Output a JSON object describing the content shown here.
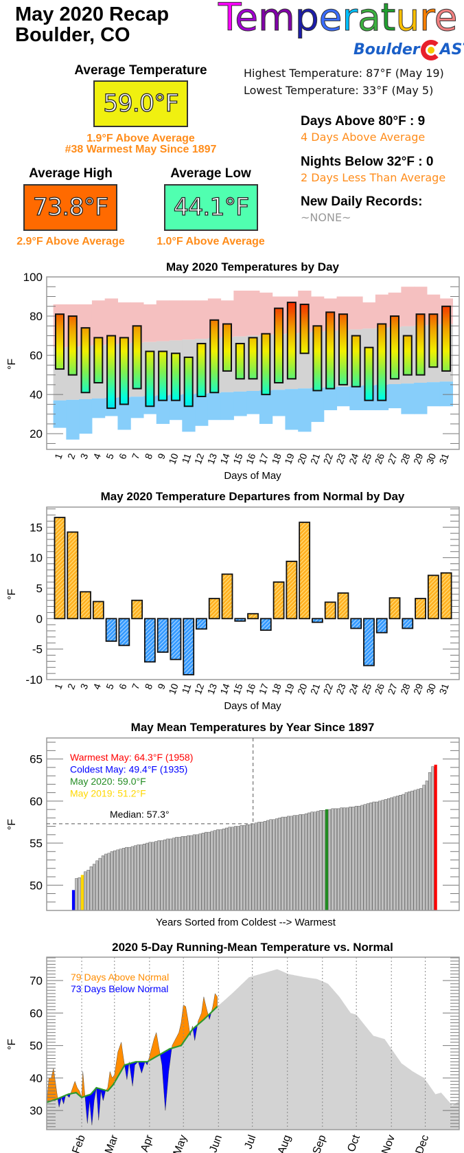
{
  "header": {
    "title_line1": "May 2020 Recap",
    "title_line2": "Boulder, CO",
    "logo_title": "Temperature",
    "logo_title_colors": [
      "#ff00ff",
      "#a000d0",
      "#8000a8",
      "#1c1ca8",
      "#3a6cff",
      "#00c0ff",
      "#3cb040",
      "#20a030",
      "#ffc000",
      "#ff8000",
      "#f08080"
    ],
    "brand_left": "Boulder",
    "brand_right": "AST",
    "brand_colors": {
      "text": "#1a5fc8",
      "c_ring": "#e8202a",
      "c_dot": "#f7c800"
    }
  },
  "summary": {
    "avg_temp": {
      "label": "Average Temperature",
      "value": "59.0°F",
      "color": "#f0f010",
      "note1": "1.9°F Above Average",
      "note2": "#38 Warmest May Since 1897"
    },
    "avg_high": {
      "label": "Average High",
      "value": "73.8°F",
      "color": "#ff6a00",
      "note": "2.9°F Above Average"
    },
    "avg_low": {
      "label": "Average Low",
      "value": "44.1°F",
      "color": "#50ffb0",
      "note": "1.0°F Above Average"
    },
    "highest": "Highest Temperature: 87°F (May 19)",
    "lowest": "Lowest Temperature: 33°F (May 5)",
    "days_above_80": "Days Above 80°F : 9",
    "days_above_80_note": "4 Days Above Average",
    "nights_below_32": "Nights Below 32°F : 0",
    "nights_below_32_note": "2 Days Less Than Average",
    "records_label": "New Daily Records:",
    "records_value": "~NONE~"
  },
  "chart_data": [
    {
      "type": "bar",
      "title": "May 2020 Temperatures by Day",
      "xlabel": "Days of May",
      "ylabel": "°F",
      "ylim": [
        12,
        100
      ],
      "yticks": [
        20,
        40,
        60,
        80,
        100
      ],
      "days": [
        1,
        2,
        3,
        4,
        5,
        6,
        7,
        8,
        9,
        10,
        11,
        12,
        13,
        14,
        15,
        16,
        17,
        18,
        19,
        20,
        21,
        22,
        23,
        24,
        25,
        26,
        27,
        28,
        29,
        30,
        31
      ],
      "high": [
        81,
        80,
        74,
        69,
        70,
        69,
        75,
        62,
        62,
        61,
        59,
        66,
        78,
        76,
        66,
        69,
        71,
        84,
        87,
        86,
        75,
        82,
        81,
        70,
        64,
        76,
        80,
        70,
        81,
        81,
        85
      ],
      "low": [
        53,
        50,
        41,
        46,
        33,
        35,
        43,
        34,
        37,
        37,
        34,
        39,
        41,
        52,
        48,
        48,
        40,
        46,
        48,
        61,
        42,
        43,
        45,
        44,
        37,
        37,
        48,
        50,
        50,
        54,
        52
      ],
      "record_high": [
        86,
        86,
        86,
        88,
        89,
        87,
        87,
        86,
        88,
        88,
        88,
        88,
        89,
        88,
        93,
        93,
        92,
        90,
        90,
        93,
        90,
        89,
        90,
        90,
        87,
        91,
        92,
        95,
        95,
        91,
        89
      ],
      "normal_high": [
        64,
        64.4,
        64.8,
        65.2,
        65.6,
        66,
        66.4,
        66.8,
        67.2,
        67.6,
        68,
        68.4,
        68.8,
        69.2,
        69.6,
        70,
        70.4,
        70.8,
        71.2,
        71.6,
        72,
        72.4,
        72.8,
        73.2,
        73.6,
        74,
        74.4,
        74.8,
        75.2,
        75.6,
        76
      ],
      "normal_low": [
        37,
        37.3,
        37.6,
        38,
        38.3,
        38.6,
        38.9,
        39.2,
        39.6,
        39.9,
        40.2,
        40.5,
        40.8,
        41.2,
        41.5,
        41.8,
        42.1,
        42.4,
        42.8,
        43.1,
        43.4,
        43.7,
        44,
        44.4,
        44.7,
        45,
        45.3,
        45.6,
        46,
        46.3,
        46.6
      ],
      "record_low": [
        23,
        17,
        20,
        28,
        29,
        22,
        28,
        30,
        25,
        27,
        21,
        24,
        27,
        27,
        29,
        30,
        25,
        29,
        22,
        21,
        26,
        32,
        34,
        32,
        32,
        32,
        33,
        30,
        30,
        34,
        34
      ],
      "colors": {
        "record_high_band": "#f5c0c0",
        "normal_band": "#d3d3d3",
        "record_low_band": "#87cefa"
      }
    },
    {
      "type": "bar",
      "title": "May 2020 Temperature Departures from Normal by Day",
      "xlabel": "Days of May",
      "ylabel": "°F",
      "ylim": [
        -10,
        18.3
      ],
      "yticks": [
        -10,
        -5,
        0,
        5,
        10,
        15
      ],
      "days": [
        1,
        2,
        3,
        4,
        5,
        6,
        7,
        8,
        9,
        10,
        11,
        12,
        13,
        14,
        15,
        16,
        17,
        18,
        19,
        20,
        21,
        22,
        23,
        24,
        25,
        26,
        27,
        28,
        29,
        30,
        31
      ],
      "values": [
        16.6,
        14.2,
        4.4,
        2.8,
        -3.7,
        -4.4,
        3.0,
        -7.1,
        -5.5,
        -6.7,
        -9.2,
        -1.7,
        3.3,
        7.3,
        -0.4,
        0.8,
        -1.9,
        6.0,
        9.4,
        15.8,
        -0.6,
        2.7,
        4.2,
        -1.6,
        -7.7,
        -2.3,
        3.4,
        -1.6,
        3.3,
        7.1,
        7.5
      ],
      "colors": {
        "above": "#ffb020",
        "below": "#3399ff"
      }
    },
    {
      "type": "bar",
      "title": "May Mean Temperatures by Year Since 1897",
      "xlabel": "Years Sorted from Coldest --> Warmest",
      "ylabel": "°F",
      "ylim": [
        47,
        67.5
      ],
      "yticks": [
        50,
        55,
        60,
        65
      ],
      "values_sorted": [
        49.4,
        50.8,
        50.9,
        51.2,
        51.6,
        51.8,
        52.2,
        52.5,
        52.9,
        53.2,
        53.5,
        53.7,
        53.8,
        54.0,
        54.1,
        54.2,
        54.3,
        54.4,
        54.5,
        54.5,
        54.6,
        54.7,
        54.8,
        54.8,
        54.9,
        55.0,
        55.1,
        55.1,
        55.2,
        55.3,
        55.3,
        55.4,
        55.5,
        55.5,
        55.6,
        55.7,
        55.7,
        55.8,
        55.8,
        55.9,
        55.9,
        56.0,
        56.0,
        56.1,
        56.2,
        56.3,
        56.3,
        56.4,
        56.5,
        56.6,
        56.6,
        56.7,
        56.8,
        56.9,
        56.9,
        57.0,
        57.0,
        57.1,
        57.1,
        57.2,
        57.2,
        57.3,
        57.4,
        57.5,
        57.5,
        57.6,
        57.7,
        57.8,
        57.8,
        57.9,
        58.0,
        58.1,
        58.1,
        58.2,
        58.2,
        58.3,
        58.3,
        58.4,
        58.4,
        58.5,
        58.6,
        58.7,
        58.7,
        58.8,
        58.9,
        58.9,
        59.0,
        59.0,
        59.1,
        59.1,
        59.1,
        59.2,
        59.2,
        59.2,
        59.3,
        59.3,
        59.4,
        59.4,
        59.5,
        59.6,
        59.7,
        59.8,
        59.9,
        59.9,
        60.0,
        60.1,
        60.2,
        60.3,
        60.4,
        60.5,
        60.6,
        60.7,
        60.8,
        61.0,
        61.1,
        61.2,
        61.3,
        61.4,
        61.5,
        61.9,
        62.4,
        63.4,
        64.1,
        64.3
      ],
      "median": 57.3,
      "median_label": "Median: 57.3°",
      "highlights": [
        {
          "label": "Warmest May: 64.3°F (1958)",
          "value": 64.3,
          "color": "#ff0000"
        },
        {
          "label": "Coldest May: 49.4°F (1935)",
          "value": 49.4,
          "color": "#0000ff"
        },
        {
          "label": "May 2020: 59.0°F",
          "value": 59.0,
          "color": "#228b22"
        },
        {
          "label": "May 2019: 51.2°F",
          "value": 51.2,
          "color": "#ffd700"
        }
      ],
      "bar_color": "#c0c0c0"
    },
    {
      "type": "area",
      "title": "2020 5-Day Running-Mean Temperature vs. Normal",
      "ylabel": "°F",
      "ylim": [
        24.1,
        77.2
      ],
      "yticks": [
        30,
        40,
        50,
        60,
        70
      ],
      "xlim": [
        "2020-01-01",
        "2020-12-31"
      ],
      "month_ticks": [
        {
          "label": "Feb",
          "date": "2020-02-01"
        },
        {
          "label": "Mar",
          "date": "2020-03-01"
        },
        {
          "label": "Apr",
          "date": "2020-04-01"
        },
        {
          "label": "May",
          "date": "2020-05-01"
        },
        {
          "label": "Jun",
          "date": "2020-06-01"
        },
        {
          "label": "Jul",
          "date": "2020-07-01"
        },
        {
          "label": "Aug",
          "date": "2020-08-01"
        },
        {
          "label": "Sep",
          "date": "2020-09-01"
        },
        {
          "label": "Oct",
          "date": "2020-10-01"
        },
        {
          "label": "Nov",
          "date": "2020-11-01"
        },
        {
          "label": "Dec",
          "date": "2020-12-01"
        }
      ],
      "legend": [
        {
          "label": "79 Days Above Normal",
          "color": "#ff8c00"
        },
        {
          "label": "73 Days Below Normal",
          "color": "#0000ff"
        }
      ],
      "normal": [
        [
          "2020-01-01",
          32.5
        ],
        [
          "2020-01-10",
          33.5
        ],
        [
          "2020-01-20",
          35
        ],
        [
          "2020-01-27",
          35.5
        ],
        [
          "2020-02-01",
          34
        ],
        [
          "2020-02-09",
          35
        ],
        [
          "2020-02-14",
          37
        ],
        [
          "2020-02-24",
          36
        ],
        [
          "2020-02-29",
          38
        ],
        [
          "2020-03-10",
          44
        ],
        [
          "2020-03-20",
          45
        ],
        [
          "2020-03-30",
          45
        ],
        [
          "2020-04-09",
          47
        ],
        [
          "2020-04-19",
          49
        ],
        [
          "2020-04-29",
          50
        ],
        [
          "2020-05-09",
          55
        ],
        [
          "2020-05-19",
          58
        ],
        [
          "2020-05-31",
          62
        ],
        [
          "2020-06-13",
          66
        ],
        [
          "2020-06-28",
          71
        ],
        [
          "2020-07-08",
          72
        ],
        [
          "2020-07-23",
          73.5
        ],
        [
          "2020-08-02",
          72
        ],
        [
          "2020-08-17",
          71
        ],
        [
          "2020-08-27",
          70.5
        ],
        [
          "2020-09-06",
          69
        ],
        [
          "2020-09-16",
          65
        ],
        [
          "2020-09-26",
          60
        ],
        [
          "2020-10-01",
          59.5
        ],
        [
          "2020-10-16",
          53
        ],
        [
          "2020-10-26",
          52
        ],
        [
          "2020-11-10",
          44.5
        ],
        [
          "2020-11-20",
          42
        ],
        [
          "2020-11-30",
          40
        ],
        [
          "2020-12-10",
          35
        ],
        [
          "2020-12-15",
          35.5
        ],
        [
          "2020-12-25",
          31.5
        ],
        [
          "2020-12-31",
          33
        ]
      ],
      "actual_2020": [
        [
          "2020-01-01",
          32
        ],
        [
          "2020-01-03",
          40
        ],
        [
          "2020-01-05",
          40
        ],
        [
          "2020-01-07",
          43
        ],
        [
          "2020-01-09",
          38
        ],
        [
          "2020-01-11",
          33
        ],
        [
          "2020-01-12",
          31
        ],
        [
          "2020-01-14",
          34
        ],
        [
          "2020-01-16",
          32
        ],
        [
          "2020-01-18",
          35
        ],
        [
          "2020-01-21",
          34
        ],
        [
          "2020-01-24",
          37
        ],
        [
          "2020-01-26",
          39
        ],
        [
          "2020-01-28",
          37
        ],
        [
          "2020-01-30",
          36
        ],
        [
          "2020-02-01",
          34
        ],
        [
          "2020-02-02",
          42
        ],
        [
          "2020-02-04",
          34
        ],
        [
          "2020-02-06",
          26
        ],
        [
          "2020-02-08",
          33
        ],
        [
          "2020-02-10",
          25.5
        ],
        [
          "2020-02-12",
          33
        ],
        [
          "2020-02-14",
          37
        ],
        [
          "2020-02-16",
          27
        ],
        [
          "2020-02-18",
          36
        ],
        [
          "2020-02-20",
          33
        ],
        [
          "2020-02-22",
          36
        ],
        [
          "2020-02-24",
          37
        ],
        [
          "2020-02-26",
          42
        ],
        [
          "2020-02-28",
          40
        ],
        [
          "2020-03-01",
          41
        ],
        [
          "2020-03-04",
          48
        ],
        [
          "2020-03-07",
          51
        ],
        [
          "2020-03-09",
          46
        ],
        [
          "2020-03-12",
          39.5
        ],
        [
          "2020-03-14",
          45
        ],
        [
          "2020-03-17",
          37.5
        ],
        [
          "2020-03-19",
          44
        ],
        [
          "2020-03-22",
          45
        ],
        [
          "2020-03-25",
          41.5
        ],
        [
          "2020-03-28",
          45
        ],
        [
          "2020-03-30",
          44
        ],
        [
          "2020-04-02",
          48
        ],
        [
          "2020-04-05",
          52
        ],
        [
          "2020-04-07",
          54
        ],
        [
          "2020-04-09",
          50
        ],
        [
          "2020-04-12",
          44
        ],
        [
          "2020-04-15",
          30
        ],
        [
          "2020-04-18",
          42
        ],
        [
          "2020-04-21",
          50
        ],
        [
          "2020-04-24",
          52
        ],
        [
          "2020-04-27",
          54
        ],
        [
          "2020-04-29",
          57
        ],
        [
          "2020-05-01",
          62.5
        ],
        [
          "2020-05-03",
          62
        ],
        [
          "2020-05-05",
          58
        ],
        [
          "2020-05-07",
          53
        ],
        [
          "2020-05-09",
          56
        ],
        [
          "2020-05-11",
          51.5
        ],
        [
          "2020-05-14",
          57.5
        ],
        [
          "2020-05-17",
          60
        ],
        [
          "2020-05-19",
          65
        ],
        [
          "2020-05-21",
          62
        ],
        [
          "2020-05-24",
          58
        ],
        [
          "2020-05-27",
          62
        ],
        [
          "2020-05-29",
          66
        ],
        [
          "2020-05-31",
          65
        ]
      ],
      "colors": {
        "normal_area": "#d3d3d3",
        "normal_line": "#2e9a2e",
        "above": "#ff8c00",
        "below": "#0000ff"
      }
    }
  ]
}
